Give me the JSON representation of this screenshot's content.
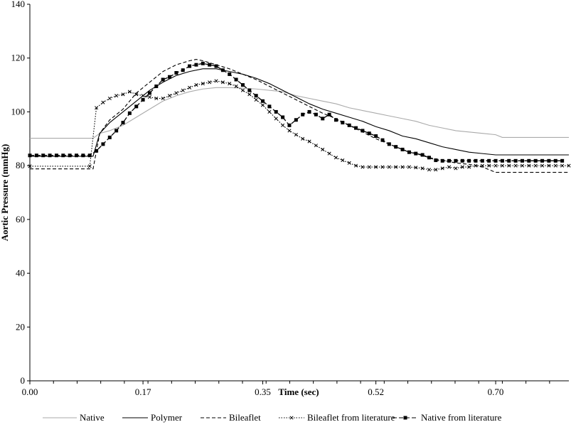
{
  "chart_data": {
    "type": "line",
    "title": "",
    "xlabel": "Time (sec)",
    "ylabel": "Aortic Pressure (mmHg)",
    "xlim": [
      0,
      0.81
    ],
    "ylim": [
      0,
      140
    ],
    "xticks": [
      0.0,
      0.17,
      0.35,
      0.52,
      0.7
    ],
    "xtick_labels": [
      "0.00",
      "0.17",
      "0.35",
      "0.52",
      "0.70"
    ],
    "yticks": [
      0,
      20,
      40,
      60,
      80,
      100,
      120,
      140
    ],
    "ytick_labels": [
      "0",
      "20",
      "40",
      "60",
      "80",
      "100",
      "120",
      "140"
    ],
    "grid": false,
    "legend_position": "bottom",
    "series": [
      {
        "name": "Native",
        "color": "#aaaaaa",
        "dash": "solid",
        "marker": "none",
        "points": [
          [
            0.0,
            90.2
          ],
          [
            0.095,
            90.2
          ],
          [
            0.105,
            92
          ],
          [
            0.12,
            93
          ],
          [
            0.14,
            95
          ],
          [
            0.16,
            98
          ],
          [
            0.18,
            101
          ],
          [
            0.2,
            104
          ],
          [
            0.22,
            106
          ],
          [
            0.24,
            107.5
          ],
          [
            0.26,
            108.5
          ],
          [
            0.28,
            109
          ],
          [
            0.3,
            109
          ],
          [
            0.32,
            108.8
          ],
          [
            0.34,
            108.5
          ],
          [
            0.36,
            108
          ],
          [
            0.38,
            107.5
          ],
          [
            0.4,
            106
          ],
          [
            0.42,
            105
          ],
          [
            0.44,
            104
          ],
          [
            0.46,
            103
          ],
          [
            0.48,
            101.5
          ],
          [
            0.5,
            100.5
          ],
          [
            0.52,
            99.5
          ],
          [
            0.54,
            98.5
          ],
          [
            0.56,
            97.5
          ],
          [
            0.58,
            96.5
          ],
          [
            0.6,
            95
          ],
          [
            0.62,
            94
          ],
          [
            0.64,
            93
          ],
          [
            0.66,
            92.5
          ],
          [
            0.68,
            92
          ],
          [
            0.7,
            91.5
          ],
          [
            0.71,
            90.5
          ],
          [
            0.81,
            90.5
          ]
        ]
      },
      {
        "name": "Polymer",
        "color": "#000000",
        "dash": "solid",
        "marker": "none",
        "points": [
          [
            0.0,
            83.5
          ],
          [
            0.095,
            83.5
          ],
          [
            0.105,
            92
          ],
          [
            0.12,
            96
          ],
          [
            0.14,
            100
          ],
          [
            0.16,
            104
          ],
          [
            0.18,
            108
          ],
          [
            0.2,
            111
          ],
          [
            0.22,
            113.5
          ],
          [
            0.24,
            115
          ],
          [
            0.26,
            116
          ],
          [
            0.28,
            116
          ],
          [
            0.3,
            115
          ],
          [
            0.32,
            114
          ],
          [
            0.34,
            112.5
          ],
          [
            0.36,
            110.5
          ],
          [
            0.38,
            108
          ],
          [
            0.4,
            105.5
          ],
          [
            0.42,
            103
          ],
          [
            0.44,
            101
          ],
          [
            0.46,
            99.5
          ],
          [
            0.48,
            98
          ],
          [
            0.5,
            96.5
          ],
          [
            0.52,
            94.5
          ],
          [
            0.54,
            93
          ],
          [
            0.56,
            91
          ],
          [
            0.58,
            90
          ],
          [
            0.6,
            88.5
          ],
          [
            0.62,
            87
          ],
          [
            0.64,
            86
          ],
          [
            0.66,
            85
          ],
          [
            0.68,
            84.5
          ],
          [
            0.7,
            84
          ],
          [
            0.81,
            84
          ]
        ]
      },
      {
        "name": "Bileaflet",
        "color": "#000000",
        "dash": "5,3",
        "marker": "none",
        "points": [
          [
            0.0,
            78.8
          ],
          [
            0.095,
            78.8
          ],
          [
            0.105,
            92
          ],
          [
            0.12,
            97
          ],
          [
            0.14,
            101
          ],
          [
            0.16,
            107
          ],
          [
            0.18,
            111
          ],
          [
            0.2,
            115
          ],
          [
            0.22,
            117.5
          ],
          [
            0.24,
            119
          ],
          [
            0.25,
            119.5
          ],
          [
            0.26,
            119
          ],
          [
            0.28,
            117.5
          ],
          [
            0.3,
            116
          ],
          [
            0.32,
            114
          ],
          [
            0.34,
            112
          ],
          [
            0.36,
            109.5
          ],
          [
            0.38,
            107
          ],
          [
            0.4,
            104.5
          ],
          [
            0.42,
            102
          ],
          [
            0.44,
            99.5
          ],
          [
            0.46,
            97.5
          ],
          [
            0.48,
            95
          ],
          [
            0.5,
            92.5
          ],
          [
            0.52,
            90
          ],
          [
            0.54,
            88
          ],
          [
            0.56,
            86
          ],
          [
            0.58,
            84.5
          ],
          [
            0.6,
            83
          ],
          [
            0.62,
            82
          ],
          [
            0.64,
            81
          ],
          [
            0.66,
            80.5
          ],
          [
            0.68,
            79.5
          ],
          [
            0.7,
            77.5
          ],
          [
            0.81,
            77.5
          ]
        ]
      },
      {
        "name": "Bileaflet from literature",
        "color": "#000000",
        "dash": "1.5,2",
        "marker": "x",
        "points": [
          [
            0.0,
            79.8
          ],
          [
            0.09,
            79.8
          ],
          [
            0.1,
            101.5
          ],
          [
            0.11,
            103.5
          ],
          [
            0.12,
            105
          ],
          [
            0.13,
            106
          ],
          [
            0.14,
            106.5
          ],
          [
            0.15,
            107.5
          ],
          [
            0.16,
            106.5
          ],
          [
            0.17,
            106
          ],
          [
            0.18,
            105.5
          ],
          [
            0.19,
            105
          ],
          [
            0.2,
            105
          ],
          [
            0.21,
            106
          ],
          [
            0.22,
            107
          ],
          [
            0.23,
            108
          ],
          [
            0.24,
            109
          ],
          [
            0.25,
            110
          ],
          [
            0.26,
            110.5
          ],
          [
            0.27,
            111
          ],
          [
            0.28,
            111.5
          ],
          [
            0.29,
            111
          ],
          [
            0.3,
            110.5
          ],
          [
            0.31,
            109.5
          ],
          [
            0.32,
            108
          ],
          [
            0.33,
            106.5
          ],
          [
            0.34,
            104.5
          ],
          [
            0.35,
            102.5
          ],
          [
            0.36,
            100
          ],
          [
            0.37,
            97.5
          ],
          [
            0.38,
            95
          ],
          [
            0.39,
            93
          ],
          [
            0.4,
            91.5
          ],
          [
            0.41,
            90
          ],
          [
            0.42,
            89
          ],
          [
            0.43,
            87.5
          ],
          [
            0.44,
            86
          ],
          [
            0.45,
            84.5
          ],
          [
            0.46,
            83
          ],
          [
            0.47,
            82
          ],
          [
            0.48,
            81
          ],
          [
            0.49,
            80
          ],
          [
            0.5,
            79.5
          ],
          [
            0.51,
            79.5
          ],
          [
            0.52,
            79.5
          ],
          [
            0.53,
            79.5
          ],
          [
            0.54,
            79.5
          ],
          [
            0.55,
            79.5
          ],
          [
            0.56,
            79.5
          ],
          [
            0.57,
            79.5
          ],
          [
            0.58,
            79.3
          ],
          [
            0.59,
            79
          ],
          [
            0.6,
            78.5
          ],
          [
            0.61,
            78.5
          ],
          [
            0.62,
            79
          ],
          [
            0.63,
            79.5
          ],
          [
            0.64,
            79
          ],
          [
            0.65,
            79.5
          ],
          [
            0.66,
            79.5
          ],
          [
            0.67,
            80
          ],
          [
            0.68,
            80
          ],
          [
            0.69,
            80
          ],
          [
            0.7,
            80
          ],
          [
            0.71,
            80
          ],
          [
            0.72,
            80
          ],
          [
            0.73,
            80
          ],
          [
            0.74,
            80
          ],
          [
            0.75,
            80
          ],
          [
            0.76,
            80
          ],
          [
            0.77,
            80
          ],
          [
            0.78,
            80
          ],
          [
            0.79,
            80
          ],
          [
            0.8,
            80
          ],
          [
            0.81,
            80
          ]
        ]
      },
      {
        "name": "Native from literature",
        "color": "#000000",
        "dash": "6,3",
        "marker": "square",
        "points": [
          [
            0.0,
            83.8
          ],
          [
            0.01,
            83.8
          ],
          [
            0.02,
            83.8
          ],
          [
            0.03,
            83.8
          ],
          [
            0.04,
            83.8
          ],
          [
            0.05,
            83.8
          ],
          [
            0.06,
            83.8
          ],
          [
            0.07,
            83.8
          ],
          [
            0.08,
            83.8
          ],
          [
            0.09,
            83.8
          ],
          [
            0.1,
            85.5
          ],
          [
            0.11,
            88
          ],
          [
            0.12,
            90.5
          ],
          [
            0.13,
            93
          ],
          [
            0.14,
            96
          ],
          [
            0.15,
            99.5
          ],
          [
            0.16,
            102
          ],
          [
            0.17,
            104.5
          ],
          [
            0.18,
            107
          ],
          [
            0.19,
            109.5
          ],
          [
            0.2,
            112
          ],
          [
            0.21,
            113
          ],
          [
            0.22,
            114.5
          ],
          [
            0.23,
            115.5
          ],
          [
            0.24,
            117
          ],
          [
            0.25,
            117.5
          ],
          [
            0.26,
            118
          ],
          [
            0.27,
            117.5
          ],
          [
            0.28,
            117
          ],
          [
            0.29,
            115.5
          ],
          [
            0.3,
            114
          ],
          [
            0.31,
            112
          ],
          [
            0.32,
            110
          ],
          [
            0.33,
            108
          ],
          [
            0.34,
            106
          ],
          [
            0.35,
            104
          ],
          [
            0.36,
            102
          ],
          [
            0.37,
            100
          ],
          [
            0.38,
            98
          ],
          [
            0.39,
            95
          ],
          [
            0.4,
            97
          ],
          [
            0.41,
            99
          ],
          [
            0.42,
            100
          ],
          [
            0.43,
            99
          ],
          [
            0.44,
            97.5
          ],
          [
            0.45,
            99
          ],
          [
            0.46,
            97
          ],
          [
            0.47,
            96
          ],
          [
            0.48,
            95
          ],
          [
            0.49,
            94
          ],
          [
            0.5,
            93
          ],
          [
            0.51,
            92
          ],
          [
            0.52,
            91
          ],
          [
            0.53,
            89.5
          ],
          [
            0.54,
            88
          ],
          [
            0.55,
            87
          ],
          [
            0.56,
            86
          ],
          [
            0.57,
            85
          ],
          [
            0.58,
            84.5
          ],
          [
            0.59,
            84
          ],
          [
            0.6,
            83
          ],
          [
            0.61,
            82
          ],
          [
            0.62,
            81.8
          ],
          [
            0.63,
            81.8
          ],
          [
            0.64,
            81.8
          ],
          [
            0.65,
            81.8
          ],
          [
            0.66,
            81.8
          ],
          [
            0.67,
            81.8
          ],
          [
            0.68,
            81.8
          ],
          [
            0.69,
            81.8
          ],
          [
            0.7,
            81.8
          ],
          [
            0.71,
            81.8
          ],
          [
            0.72,
            81.8
          ],
          [
            0.73,
            81.8
          ],
          [
            0.74,
            81.8
          ],
          [
            0.75,
            81.8
          ],
          [
            0.76,
            81.8
          ],
          [
            0.77,
            81.8
          ],
          [
            0.78,
            81.8
          ],
          [
            0.79,
            81.8
          ],
          [
            0.8,
            81.8
          ]
        ]
      }
    ]
  }
}
